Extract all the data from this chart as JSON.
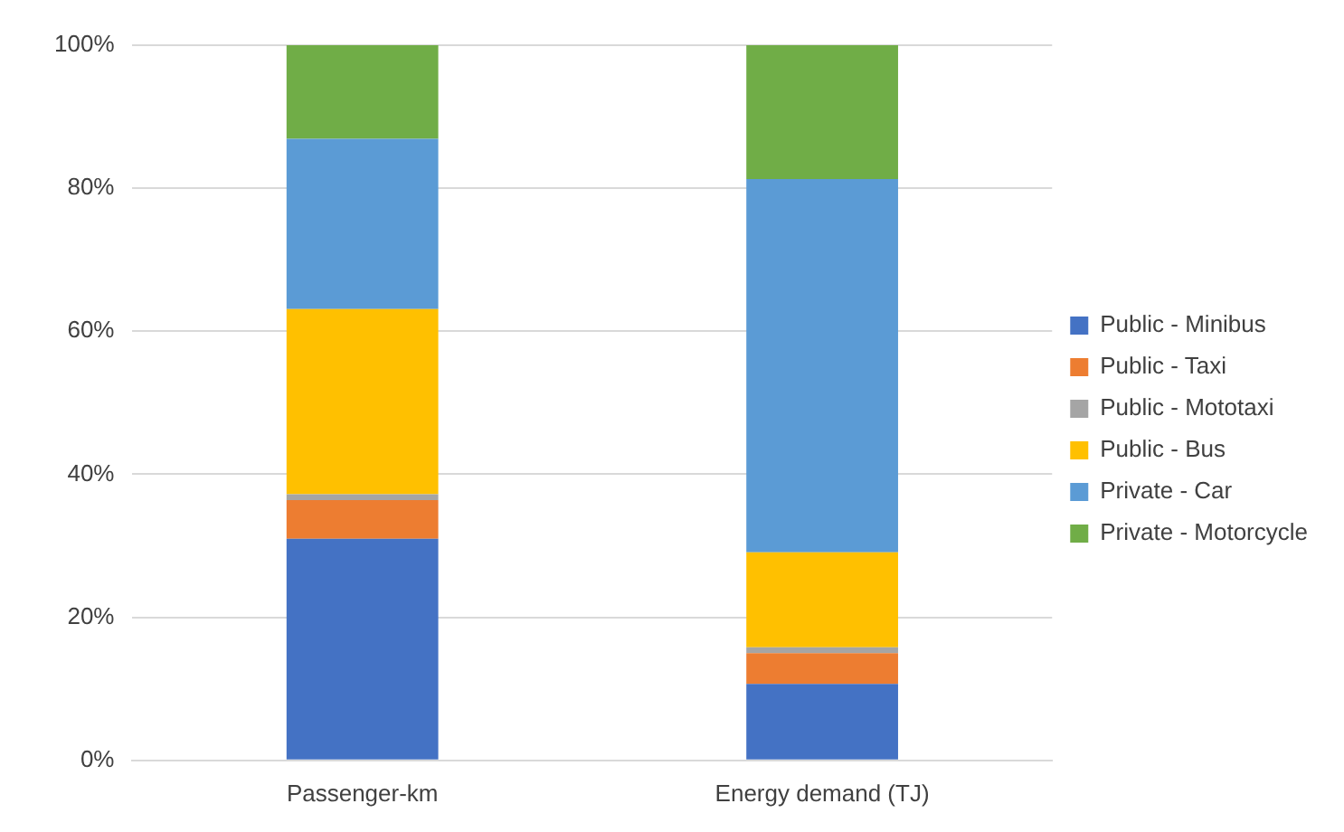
{
  "chart_data": {
    "type": "bar",
    "stacked": true,
    "categories": [
      "Passenger-km",
      "Energy demand (TJ)"
    ],
    "series": [
      {
        "name": "Public - Minibus",
        "color": "#4472c4",
        "values": [
          31.0,
          10.7
        ]
      },
      {
        "name": "Public - Taxi",
        "color": "#ed7d31",
        "values": [
          5.4,
          4.3
        ]
      },
      {
        "name": "Public - Mototaxi",
        "color": "#a5a5a5",
        "values": [
          0.8,
          0.8
        ]
      },
      {
        "name": "Public - Bus",
        "color": "#ffc000",
        "values": [
          25.9,
          13.3
        ]
      },
      {
        "name": "Private - Car",
        "color": "#5b9bd5",
        "values": [
          23.8,
          52.2
        ]
      },
      {
        "name": "Private - Motorcycle",
        "color": "#70ad47",
        "values": [
          13.1,
          18.7
        ]
      }
    ],
    "ylim": [
      0,
      100
    ],
    "yticks": [
      {
        "value": 0,
        "label": "0%"
      },
      {
        "value": 20,
        "label": "20%"
      },
      {
        "value": 40,
        "label": "40%"
      },
      {
        "value": 60,
        "label": "60%"
      },
      {
        "value": 80,
        "label": "80%"
      },
      {
        "value": 100,
        "label": "100%"
      }
    ],
    "grid": "y",
    "legend": "right"
  }
}
